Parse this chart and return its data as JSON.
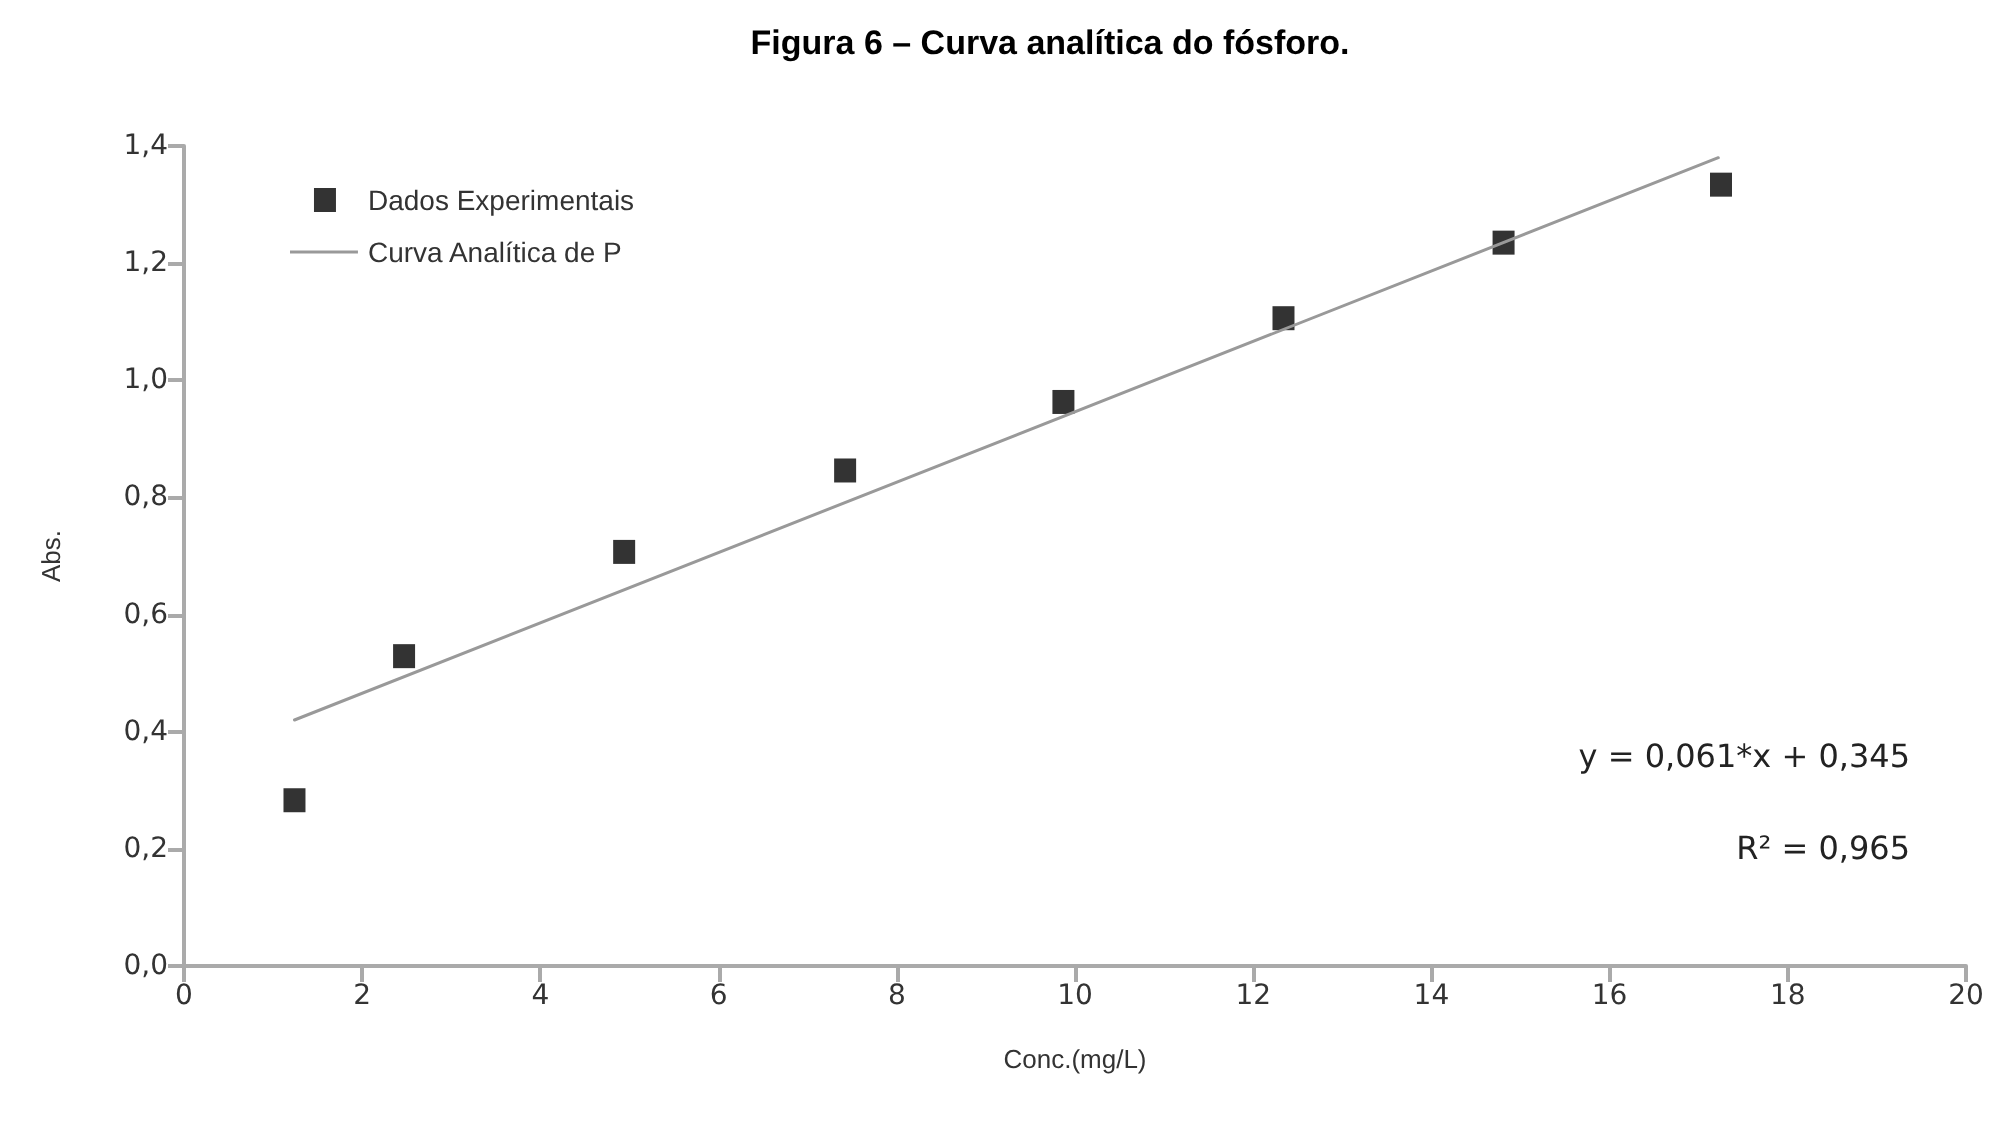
{
  "chart_data": {
    "type": "scatter",
    "title": "Figura 6 – Curva analítica do fósforo.",
    "xlabel": "Conc.(mg/L)",
    "ylabel": "Abs.",
    "series": [
      {
        "name": "Dados Experimentais",
        "color": "#000000",
        "marker": "square",
        "x": [
          1.24,
          2.47,
          4.94,
          7.42,
          9.87,
          12.34,
          14.81,
          17.25
        ],
        "values": [
          0.283,
          0.529,
          0.707,
          0.846,
          0.963,
          1.106,
          1.235,
          1.334
        ]
      },
      {
        "name": "Curva Analítica de P",
        "type": "line",
        "color": "#999999",
        "marker": "none",
        "x": [
          1.24,
          17.22
        ],
        "values": [
          0.42,
          1.38
        ]
      }
    ],
    "xlim": [
      0,
      20
    ],
    "xticks": [
      0,
      2,
      4,
      6,
      8,
      10,
      12,
      14,
      16,
      18,
      20
    ],
    "ylim": [
      0,
      1.4
    ],
    "yticks": [
      {
        "value": 0,
        "label": "0,0"
      },
      {
        "value": 0.2,
        "label": "0,2"
      },
      {
        "value": 0.4,
        "label": "0,4"
      },
      {
        "value": 0.6,
        "label": "0,6"
      },
      {
        "value": 0.8,
        "label": "0,8"
      },
      {
        "value": 1.0,
        "label": "1,0"
      },
      {
        "value": 1.2,
        "label": "1,2"
      },
      {
        "value": 1.4,
        "label": "1,4"
      }
    ],
    "grid": false,
    "legend": "top left",
    "annotations": [
      "y = 0,061*x + 0,345",
      "R² = 0,965"
    ]
  }
}
